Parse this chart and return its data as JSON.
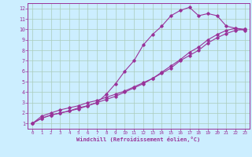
{
  "xlabel": "Windchill (Refroidissement éolien,°C)",
  "bg_color": "#cceeff",
  "grid_color": "#aaccbb",
  "line_color": "#993399",
  "xlim": [
    -0.5,
    23.5
  ],
  "ylim": [
    0.5,
    12.5
  ],
  "xticks": [
    0,
    1,
    2,
    3,
    4,
    5,
    6,
    7,
    8,
    9,
    10,
    11,
    12,
    13,
    14,
    15,
    16,
    17,
    18,
    19,
    20,
    21,
    22,
    23
  ],
  "yticks": [
    1,
    2,
    3,
    4,
    5,
    6,
    7,
    8,
    9,
    10,
    11,
    12
  ],
  "series1_x": [
    0,
    1,
    2,
    3,
    4,
    5,
    6,
    7,
    8,
    9,
    10,
    11,
    12,
    13,
    14,
    15,
    16,
    17,
    18,
    19,
    20,
    21,
    22,
    23
  ],
  "series1_y": [
    1.0,
    1.7,
    2.0,
    2.3,
    2.5,
    2.7,
    3.0,
    3.2,
    3.5,
    3.8,
    4.1,
    4.5,
    4.9,
    5.3,
    5.8,
    6.3,
    7.0,
    7.5,
    8.0,
    8.7,
    9.2,
    9.6,
    9.9,
    10.0
  ],
  "series2_x": [
    0,
    1,
    2,
    3,
    4,
    5,
    6,
    7,
    8,
    9,
    10,
    11,
    12,
    13,
    14,
    15,
    16,
    17,
    18,
    19,
    20,
    21,
    22,
    23
  ],
  "series2_y": [
    1.0,
    1.5,
    1.8,
    2.0,
    2.2,
    2.4,
    2.7,
    3.0,
    3.8,
    4.8,
    6.0,
    7.0,
    8.5,
    9.5,
    10.3,
    11.3,
    11.8,
    12.1,
    11.3,
    11.5,
    11.3,
    10.3,
    10.1,
    9.9
  ],
  "series3_x": [
    0,
    1,
    2,
    3,
    4,
    5,
    6,
    7,
    8,
    9,
    10,
    11,
    12,
    13,
    14,
    15,
    16,
    17,
    18,
    19,
    20,
    21,
    22,
    23
  ],
  "series3_y": [
    1.0,
    1.5,
    1.8,
    2.0,
    2.2,
    2.5,
    2.7,
    3.0,
    3.3,
    3.6,
    4.0,
    4.4,
    4.8,
    5.3,
    5.9,
    6.5,
    7.1,
    7.8,
    8.3,
    9.0,
    9.5,
    9.9,
    10.1,
    10.0
  ],
  "marker": "D",
  "marker_size": 1.8,
  "line_width": 0.8
}
